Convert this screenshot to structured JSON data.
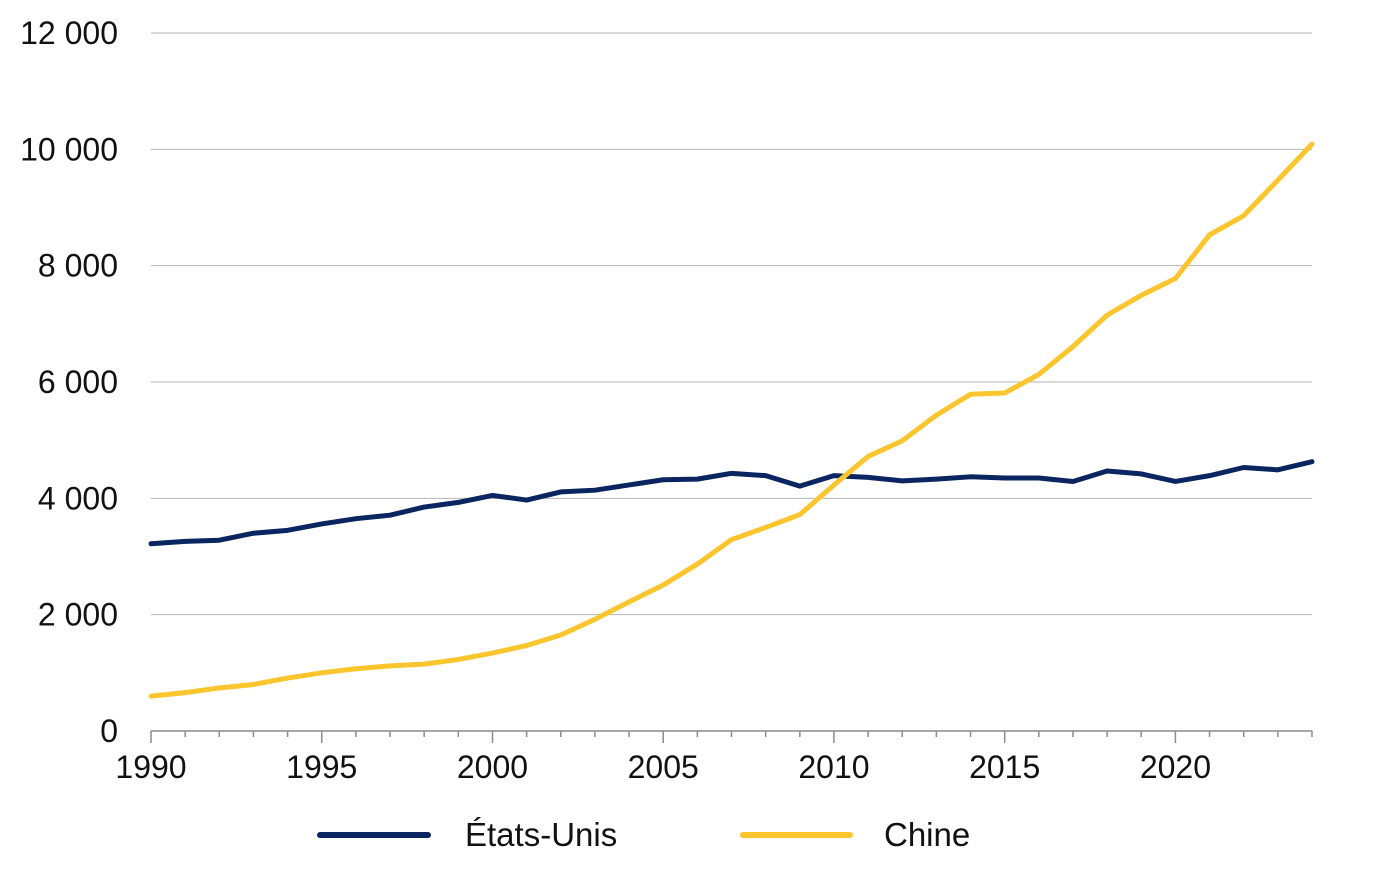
{
  "chart_data": {
    "type": "line",
    "x": [
      1990,
      1991,
      1992,
      1993,
      1994,
      1995,
      1996,
      1997,
      1998,
      1999,
      2000,
      2001,
      2002,
      2003,
      2004,
      2005,
      2006,
      2007,
      2008,
      2009,
      2010,
      2011,
      2012,
      2013,
      2014,
      2015,
      2016,
      2017,
      2018,
      2019,
      2020,
      2021,
      2022,
      2023,
      2024
    ],
    "series": [
      {
        "name": "États-Unis",
        "color": "#0b2560",
        "values": [
          3220,
          3260,
          3280,
          3400,
          3450,
          3560,
          3650,
          3710,
          3850,
          3930,
          4050,
          3970,
          4110,
          4140,
          4230,
          4320,
          4330,
          4430,
          4390,
          4210,
          4390,
          4360,
          4300,
          4330,
          4370,
          4350,
          4350,
          4290,
          4470,
          4420,
          4290,
          4390,
          4530,
          4490,
          4630
        ]
      },
      {
        "name": "Chine",
        "color": "#fbc52d",
        "values": [
          600,
          660,
          740,
          800,
          910,
          1000,
          1070,
          1120,
          1150,
          1230,
          1340,
          1470,
          1650,
          1920,
          2220,
          2510,
          2870,
          3290,
          3500,
          3720,
          4230,
          4720,
          4990,
          5430,
          5790,
          5810,
          6130,
          6610,
          7150,
          7490,
          7780,
          8530,
          8860,
          9470,
          10090
        ]
      }
    ],
    "xlim": [
      1990,
      2024
    ],
    "ylim": [
      0,
      12000
    ],
    "x_ticks": [
      1990,
      1995,
      2000,
      2005,
      2010,
      2015,
      2020
    ],
    "x_tick_labels": [
      "1990",
      "1995",
      "2000",
      "2005",
      "2010",
      "2015",
      "2020"
    ],
    "y_ticks": [
      0,
      2000,
      4000,
      6000,
      8000,
      10000,
      12000
    ],
    "y_tick_labels": [
      "0",
      "2 000",
      "4 000",
      "6 000",
      "8 000",
      "10 000",
      "12 000"
    ],
    "grid": "horizontal",
    "legend_position": "bottom-center"
  }
}
